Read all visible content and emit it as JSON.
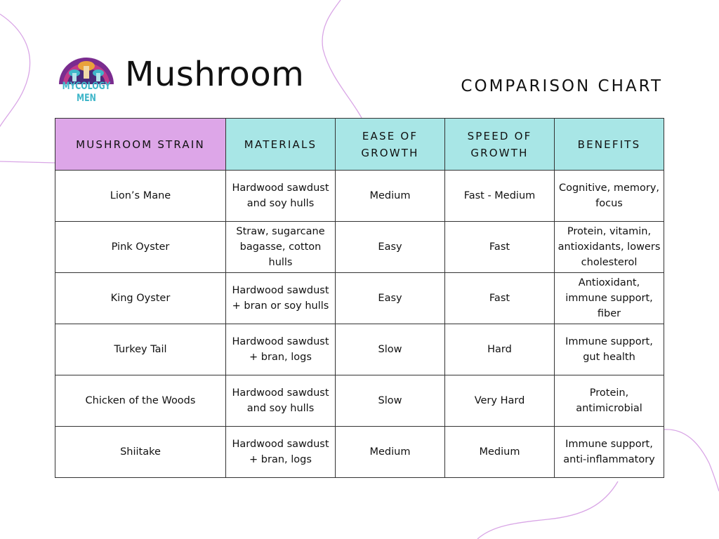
{
  "header": {
    "logo_text": "MYCOLOGY MEN",
    "title": "Mushroom",
    "subtitle": "COMPARISON CHART"
  },
  "colors": {
    "header_strain_bg": "#dda6e8",
    "header_bg": "#a8e6e6",
    "decor_line": "#d9a6e6",
    "logo_cyan": "#3fb6c9",
    "logo_purple": "#7a2c8f"
  },
  "table": {
    "headers": [
      "MUSHROOM STRAIN",
      "MATERIALS",
      "EASE OF GROWTH",
      "SPEED OF GROWTH",
      "BENEFITS"
    ],
    "rows": [
      [
        "Lion’s Mane",
        "Hardwood sawdust and soy hulls",
        "Medium",
        "Fast - Medium",
        "Cognitive, memory, focus"
      ],
      [
        "Pink Oyster",
        "Straw, sugarcane bagasse, cotton hulls",
        "Easy",
        "Fast",
        "Protein, vitamin, antioxidants, lowers cholesterol"
      ],
      [
        "King Oyster",
        "Hardwood sawdust + bran or soy hulls",
        "Easy",
        "Fast",
        "Antioxidant, immune support, fiber"
      ],
      [
        "Turkey Tail",
        "Hardwood sawdust + bran, logs",
        "Slow",
        "Hard",
        "Immune support, gut health"
      ],
      [
        "Chicken of the Woods",
        "Hardwood sawdust and soy hulls",
        "Slow",
        "Very Hard",
        "Protein, antimicrobial"
      ],
      [
        "Shiitake",
        "Hardwood sawdust + bran, logs",
        "Medium",
        "Medium",
        "Immune support, anti-inflammatory"
      ]
    ]
  }
}
